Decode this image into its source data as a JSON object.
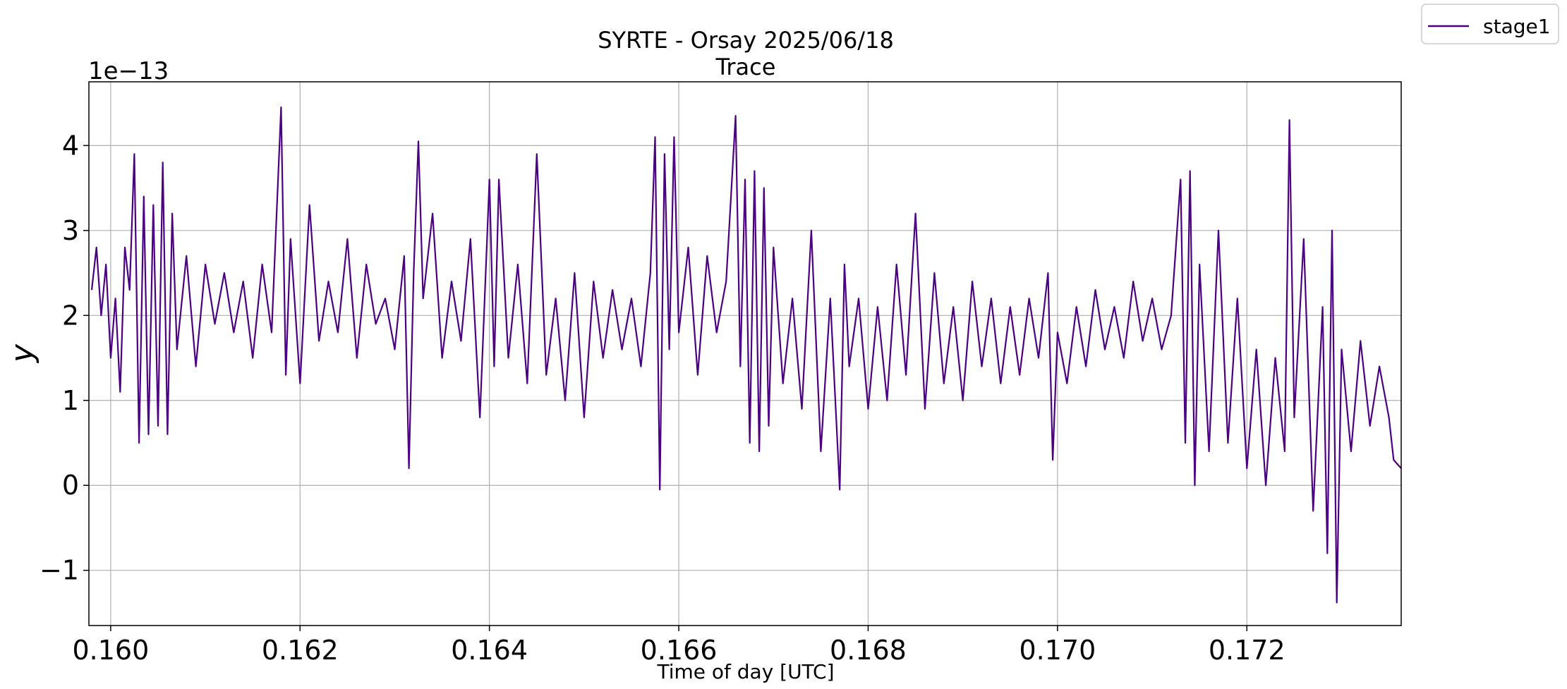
{
  "chart_data": {
    "type": "line",
    "title": "SYRTE - Orsay 2025/06/18",
    "subtitle": "Trace",
    "xlabel": "Time of day [UTC]",
    "ylabel": "y",
    "y_offset_label": "1e−13",
    "xlim": [
      0.15977,
      0.17363
    ],
    "ylim": [
      -1.65,
      4.75
    ],
    "y_scale_factor": 1e-13,
    "grid": true,
    "legend_placement": "outside top-right",
    "x_ticks": [
      {
        "value": 0.16,
        "label": "0.160"
      },
      {
        "value": 0.162,
        "label": "0.162"
      },
      {
        "value": 0.164,
        "label": "0.164"
      },
      {
        "value": 0.166,
        "label": "0.166"
      },
      {
        "value": 0.168,
        "label": "0.168"
      },
      {
        "value": 0.17,
        "label": "0.170"
      },
      {
        "value": 0.172,
        "label": "0.172"
      }
    ],
    "y_ticks": [
      {
        "value": -1,
        "label": "−1"
      },
      {
        "value": 0,
        "label": "0"
      },
      {
        "value": 1,
        "label": "1"
      },
      {
        "value": 2,
        "label": "2"
      },
      {
        "value": 3,
        "label": "3"
      },
      {
        "value": 4,
        "label": "4"
      }
    ],
    "series": [
      {
        "name": "stage1",
        "color": "#4b0082",
        "points": [
          [
            0.1598,
            2.3
          ],
          [
            0.15985,
            2.8
          ],
          [
            0.1599,
            2.0
          ],
          [
            0.15995,
            2.6
          ],
          [
            0.16,
            1.5
          ],
          [
            0.16005,
            2.2
          ],
          [
            0.1601,
            1.1
          ],
          [
            0.16015,
            2.8
          ],
          [
            0.1602,
            2.3
          ],
          [
            0.16025,
            3.9
          ],
          [
            0.1603,
            0.5
          ],
          [
            0.16035,
            3.4
          ],
          [
            0.1604,
            0.6
          ],
          [
            0.16045,
            3.3
          ],
          [
            0.1605,
            0.7
          ],
          [
            0.16055,
            3.8
          ],
          [
            0.1606,
            0.6
          ],
          [
            0.16065,
            3.2
          ],
          [
            0.1607,
            1.6
          ],
          [
            0.1608,
            2.7
          ],
          [
            0.1609,
            1.4
          ],
          [
            0.161,
            2.6
          ],
          [
            0.1611,
            1.9
          ],
          [
            0.1612,
            2.5
          ],
          [
            0.1613,
            1.8
          ],
          [
            0.1614,
            2.4
          ],
          [
            0.1615,
            1.5
          ],
          [
            0.1616,
            2.6
          ],
          [
            0.1617,
            1.8
          ],
          [
            0.1618,
            4.45
          ],
          [
            0.16185,
            1.3
          ],
          [
            0.1619,
            2.9
          ],
          [
            0.162,
            1.2
          ],
          [
            0.1621,
            3.3
          ],
          [
            0.1622,
            1.7
          ],
          [
            0.1623,
            2.4
          ],
          [
            0.1624,
            1.8
          ],
          [
            0.1625,
            2.9
          ],
          [
            0.1626,
            1.5
          ],
          [
            0.1627,
            2.6
          ],
          [
            0.1628,
            1.9
          ],
          [
            0.1629,
            2.2
          ],
          [
            0.163,
            1.6
          ],
          [
            0.1631,
            2.7
          ],
          [
            0.16315,
            0.2
          ],
          [
            0.1632,
            2.5
          ],
          [
            0.16325,
            4.05
          ],
          [
            0.1633,
            2.2
          ],
          [
            0.1634,
            3.2
          ],
          [
            0.1635,
            1.5
          ],
          [
            0.1636,
            2.4
          ],
          [
            0.1637,
            1.7
          ],
          [
            0.1638,
            2.9
          ],
          [
            0.1639,
            0.8
          ],
          [
            0.164,
            3.6
          ],
          [
            0.16405,
            1.4
          ],
          [
            0.1641,
            3.6
          ],
          [
            0.1642,
            1.5
          ],
          [
            0.1643,
            2.6
          ],
          [
            0.1644,
            1.2
          ],
          [
            0.1645,
            3.9
          ],
          [
            0.1646,
            1.3
          ],
          [
            0.1647,
            2.2
          ],
          [
            0.1648,
            1.0
          ],
          [
            0.1649,
            2.5
          ],
          [
            0.165,
            0.8
          ],
          [
            0.1651,
            2.4
          ],
          [
            0.1652,
            1.5
          ],
          [
            0.1653,
            2.3
          ],
          [
            0.1654,
            1.6
          ],
          [
            0.1655,
            2.2
          ],
          [
            0.1656,
            1.4
          ],
          [
            0.1657,
            2.5
          ],
          [
            0.16575,
            4.1
          ],
          [
            0.1658,
            -0.05
          ],
          [
            0.16585,
            3.9
          ],
          [
            0.1659,
            1.6
          ],
          [
            0.16595,
            4.1
          ],
          [
            0.166,
            1.8
          ],
          [
            0.1661,
            2.8
          ],
          [
            0.1662,
            1.3
          ],
          [
            0.1663,
            2.7
          ],
          [
            0.1664,
            1.8
          ],
          [
            0.1665,
            2.4
          ],
          [
            0.1666,
            4.35
          ],
          [
            0.16665,
            1.4
          ],
          [
            0.1667,
            3.6
          ],
          [
            0.16675,
            0.5
          ],
          [
            0.1668,
            3.7
          ],
          [
            0.16685,
            0.4
          ],
          [
            0.1669,
            3.5
          ],
          [
            0.16695,
            0.7
          ],
          [
            0.167,
            2.8
          ],
          [
            0.1671,
            1.2
          ],
          [
            0.1672,
            2.2
          ],
          [
            0.1673,
            0.9
          ],
          [
            0.1674,
            3.0
          ],
          [
            0.1675,
            0.4
          ],
          [
            0.1676,
            2.2
          ],
          [
            0.1677,
            -0.05
          ],
          [
            0.16775,
            2.6
          ],
          [
            0.1678,
            1.4
          ],
          [
            0.1679,
            2.2
          ],
          [
            0.168,
            0.9
          ],
          [
            0.1681,
            2.1
          ],
          [
            0.1682,
            1.0
          ],
          [
            0.1683,
            2.6
          ],
          [
            0.1684,
            1.3
          ],
          [
            0.1685,
            3.2
          ],
          [
            0.1686,
            0.9
          ],
          [
            0.1687,
            2.5
          ],
          [
            0.1688,
            1.2
          ],
          [
            0.1689,
            2.1
          ],
          [
            0.169,
            1.0
          ],
          [
            0.1691,
            2.4
          ],
          [
            0.1692,
            1.4
          ],
          [
            0.1693,
            2.2
          ],
          [
            0.1694,
            1.2
          ],
          [
            0.1695,
            2.1
          ],
          [
            0.1696,
            1.3
          ],
          [
            0.1697,
            2.2
          ],
          [
            0.1698,
            1.5
          ],
          [
            0.1699,
            2.5
          ],
          [
            0.16995,
            0.3
          ],
          [
            0.17,
            1.8
          ],
          [
            0.1701,
            1.2
          ],
          [
            0.1702,
            2.1
          ],
          [
            0.1703,
            1.4
          ],
          [
            0.1704,
            2.3
          ],
          [
            0.1705,
            1.6
          ],
          [
            0.1706,
            2.1
          ],
          [
            0.1707,
            1.5
          ],
          [
            0.1708,
            2.4
          ],
          [
            0.1709,
            1.7
          ],
          [
            0.171,
            2.2
          ],
          [
            0.1711,
            1.6
          ],
          [
            0.1712,
            2.0
          ],
          [
            0.1713,
            3.6
          ],
          [
            0.17135,
            0.5
          ],
          [
            0.1714,
            3.7
          ],
          [
            0.17145,
            0.0
          ],
          [
            0.1715,
            2.6
          ],
          [
            0.1716,
            0.4
          ],
          [
            0.1717,
            3.0
          ],
          [
            0.1718,
            0.5
          ],
          [
            0.1719,
            2.2
          ],
          [
            0.172,
            0.2
          ],
          [
            0.1721,
            1.6
          ],
          [
            0.1722,
            0.0
          ],
          [
            0.1723,
            1.5
          ],
          [
            0.1724,
            0.4
          ],
          [
            0.17245,
            4.3
          ],
          [
            0.1725,
            0.8
          ],
          [
            0.1726,
            2.9
          ],
          [
            0.1727,
            -0.3
          ],
          [
            0.1728,
            2.1
          ],
          [
            0.17285,
            -0.8
          ],
          [
            0.1729,
            3.0
          ],
          [
            0.17295,
            -1.38
          ],
          [
            0.173,
            1.6
          ],
          [
            0.1731,
            0.4
          ],
          [
            0.1732,
            1.7
          ],
          [
            0.1733,
            0.7
          ],
          [
            0.1734,
            1.4
          ],
          [
            0.1735,
            0.8
          ],
          [
            0.17355,
            0.3
          ],
          [
            0.17363,
            0.2
          ]
        ]
      }
    ]
  }
}
